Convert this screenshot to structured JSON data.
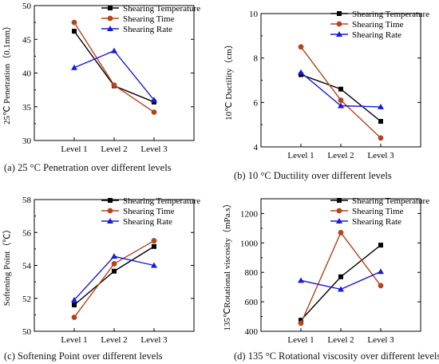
{
  "chart_data": [
    {
      "type": "line",
      "caption": "(a) 25 °C Penetration over different levels",
      "ylabel": "25℃ Penetration（0.1mm）",
      "categories": [
        "Level 1",
        "Level 2",
        "Level 3"
      ],
      "ylim": [
        30,
        50
      ],
      "yticks": [
        "30",
        "35",
        "40",
        "45",
        "50"
      ],
      "legend_position": "top-right",
      "series": [
        {
          "name": "Shearing Temperature",
          "values": [
            46.2,
            38.1,
            35.7
          ],
          "color": "#000000",
          "marker": "square"
        },
        {
          "name": "Shearing Time",
          "values": [
            47.5,
            38.2,
            34.2
          ],
          "color": "#b5441c",
          "marker": "circle"
        },
        {
          "name": "Shearing Rate",
          "values": [
            40.8,
            43.3,
            36.0
          ],
          "color": "#1a1ad6",
          "marker": "triangle"
        }
      ]
    },
    {
      "type": "line",
      "caption": "(b) 10 °C Ductility over different levels",
      "ylabel": "10℃ Ductility（cm）",
      "categories": [
        "Level 1",
        "Level 2",
        "Level 3"
      ],
      "ylim": [
        4,
        10
      ],
      "yticks": [
        "4",
        "6",
        "8",
        "10"
      ],
      "legend_position": "top-right",
      "series": [
        {
          "name": "Shearing Temperature",
          "values": [
            7.25,
            6.6,
            5.15
          ],
          "color": "#000000",
          "marker": "square"
        },
        {
          "name": "Shearing Time",
          "values": [
            8.5,
            6.1,
            4.4
          ],
          "color": "#b5441c",
          "marker": "circle"
        },
        {
          "name": "Shearing Rate",
          "values": [
            7.35,
            5.85,
            5.8
          ],
          "color": "#1a1ad6",
          "marker": "triangle"
        }
      ]
    },
    {
      "type": "line",
      "caption": "(c) Softening Point over different levels",
      "ylabel": "Softening Point（℃）",
      "categories": [
        "Level 1",
        "Level 2",
        "Level 3"
      ],
      "ylim": [
        50,
        58
      ],
      "yticks": [
        "50",
        "52",
        "54",
        "56",
        "58"
      ],
      "legend_position": "top-right",
      "series": [
        {
          "name": "Shearing Temperature",
          "values": [
            51.6,
            53.65,
            55.15
          ],
          "color": "#000000",
          "marker": "square"
        },
        {
          "name": "Shearing Time",
          "values": [
            50.85,
            54.1,
            55.5
          ],
          "color": "#b5441c",
          "marker": "circle"
        },
        {
          "name": "Shearing Rate",
          "values": [
            51.9,
            54.55,
            54.0
          ],
          "color": "#1a1ad6",
          "marker": "triangle"
        }
      ]
    },
    {
      "type": "line",
      "caption": "(d) 135 °C Rotational viscosity over different levels",
      "ylabel": "135℃Rotational viscosity（mPa.s）",
      "categories": [
        "Level 1",
        "Level 2",
        "Level 3"
      ],
      "ylim": [
        400,
        1300
      ],
      "yticks": [
        "400",
        "600",
        "800",
        "1000",
        "1200"
      ],
      "legend_position": "top-right",
      "series": [
        {
          "name": "Shearing Temperature",
          "values": [
            475,
            770,
            985
          ],
          "color": "#000000",
          "marker": "square"
        },
        {
          "name": "Shearing Time",
          "values": [
            455,
            1070,
            710
          ],
          "color": "#b5441c",
          "marker": "circle"
        },
        {
          "name": "Shearing Rate",
          "values": [
            745,
            685,
            805
          ],
          "color": "#1a1ad6",
          "marker": "triangle"
        }
      ]
    }
  ]
}
